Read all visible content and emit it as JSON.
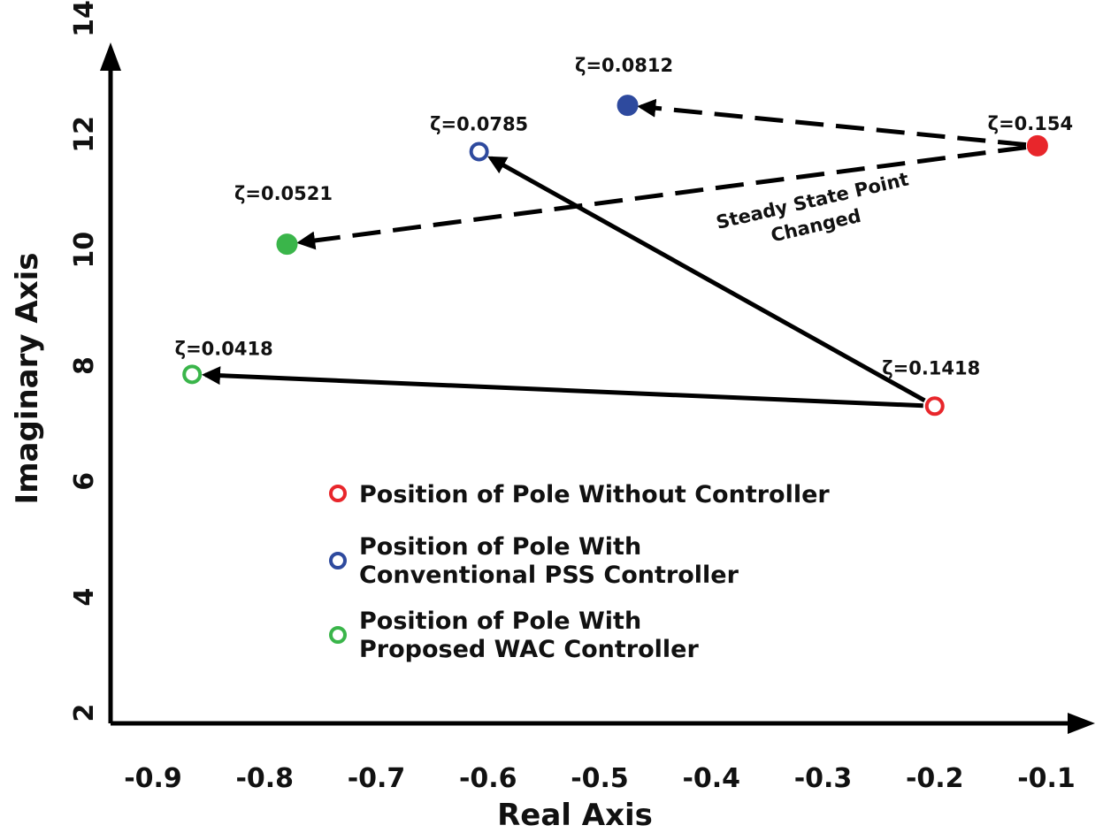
{
  "chart_data": {
    "type": "scatter",
    "title": "",
    "xlabel": "Real Axis",
    "ylabel": "Imaginary Axis",
    "xlim": [
      -0.96,
      -0.07
    ],
    "ylim": [
      2,
      14
    ],
    "x_ticks": [
      "-0.9",
      "-0.8",
      "-0.7",
      "-0.6",
      "-0.5",
      "-0.4",
      "-0.3",
      "-0.2",
      "-0.1"
    ],
    "y_ticks": [
      "2",
      "4",
      "6",
      "8",
      "10",
      "12",
      "14"
    ],
    "series": [
      {
        "name": "Position of Pole Without Controller",
        "color": "#e8262b",
        "points": [
          {
            "id": "p_without_ss",
            "x": -0.2,
            "y": 7.3,
            "zeta": "ζ=0.1418",
            "filled": false
          },
          {
            "id": "p_without_changed",
            "x": -0.108,
            "y": 11.8,
            "zeta": "ζ=0.154",
            "filled": true
          }
        ]
      },
      {
        "name": "Position of Pole With Conventional PSS Controller",
        "color": "#2e4a9e",
        "points": [
          {
            "id": "p_pss_ss",
            "x": -0.608,
            "y": 11.7,
            "zeta": "ζ=0.0785",
            "filled": false
          },
          {
            "id": "p_pss_changed",
            "x": -0.475,
            "y": 12.5,
            "zeta": "ζ=0.0812",
            "filled": true
          }
        ]
      },
      {
        "name": "Position of Pole With Proposed WAC Controller",
        "color": "#3ab54a",
        "points": [
          {
            "id": "p_wac_ss",
            "x": -0.865,
            "y": 7.85,
            "zeta": "ζ=0.0418",
            "filled": false
          },
          {
            "id": "p_wac_changed",
            "x": -0.78,
            "y": 10.1,
            "zeta": "ζ=0.0521",
            "filled": true
          }
        ]
      }
    ],
    "arrows": [
      {
        "from": "p_without_ss",
        "to": "p_pss_ss",
        "style": "solid"
      },
      {
        "from": "p_without_ss",
        "to": "p_wac_ss",
        "style": "solid"
      },
      {
        "from": "p_without_changed",
        "to": "p_pss_changed",
        "style": "dashed"
      },
      {
        "from": "p_without_changed",
        "to": "p_wac_changed",
        "style": "dashed"
      }
    ],
    "annotation": {
      "line1": "Steady State Point",
      "line2": "Changed"
    },
    "legend": [
      {
        "color": "#e8262b",
        "line1": "Position of Pole Without Controller",
        "line2": ""
      },
      {
        "color": "#2e4a9e",
        "line1": "Position of Pole With",
        "line2": "Conventional PSS Controller"
      },
      {
        "color": "#3ab54a",
        "line1": "Position of Pole With",
        "line2": "Proposed WAC Controller"
      }
    ]
  }
}
